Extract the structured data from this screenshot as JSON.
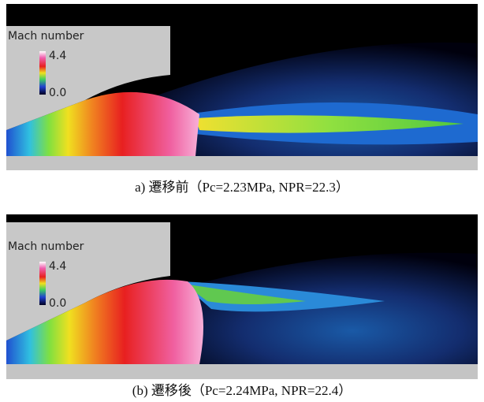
{
  "panels": [
    {
      "legend_title": "Mach number",
      "max_label": "4.4",
      "min_label": "0.0",
      "caption": "a) 遷移前（Pc=2.23MPa, NPR=22.3）"
    },
    {
      "legend_title": "Mach number",
      "max_label": "4.4",
      "min_label": "0.0",
      "caption": "(b) 遷移後（Pc=2.24MPa, NPR=22.4）"
    }
  ]
}
